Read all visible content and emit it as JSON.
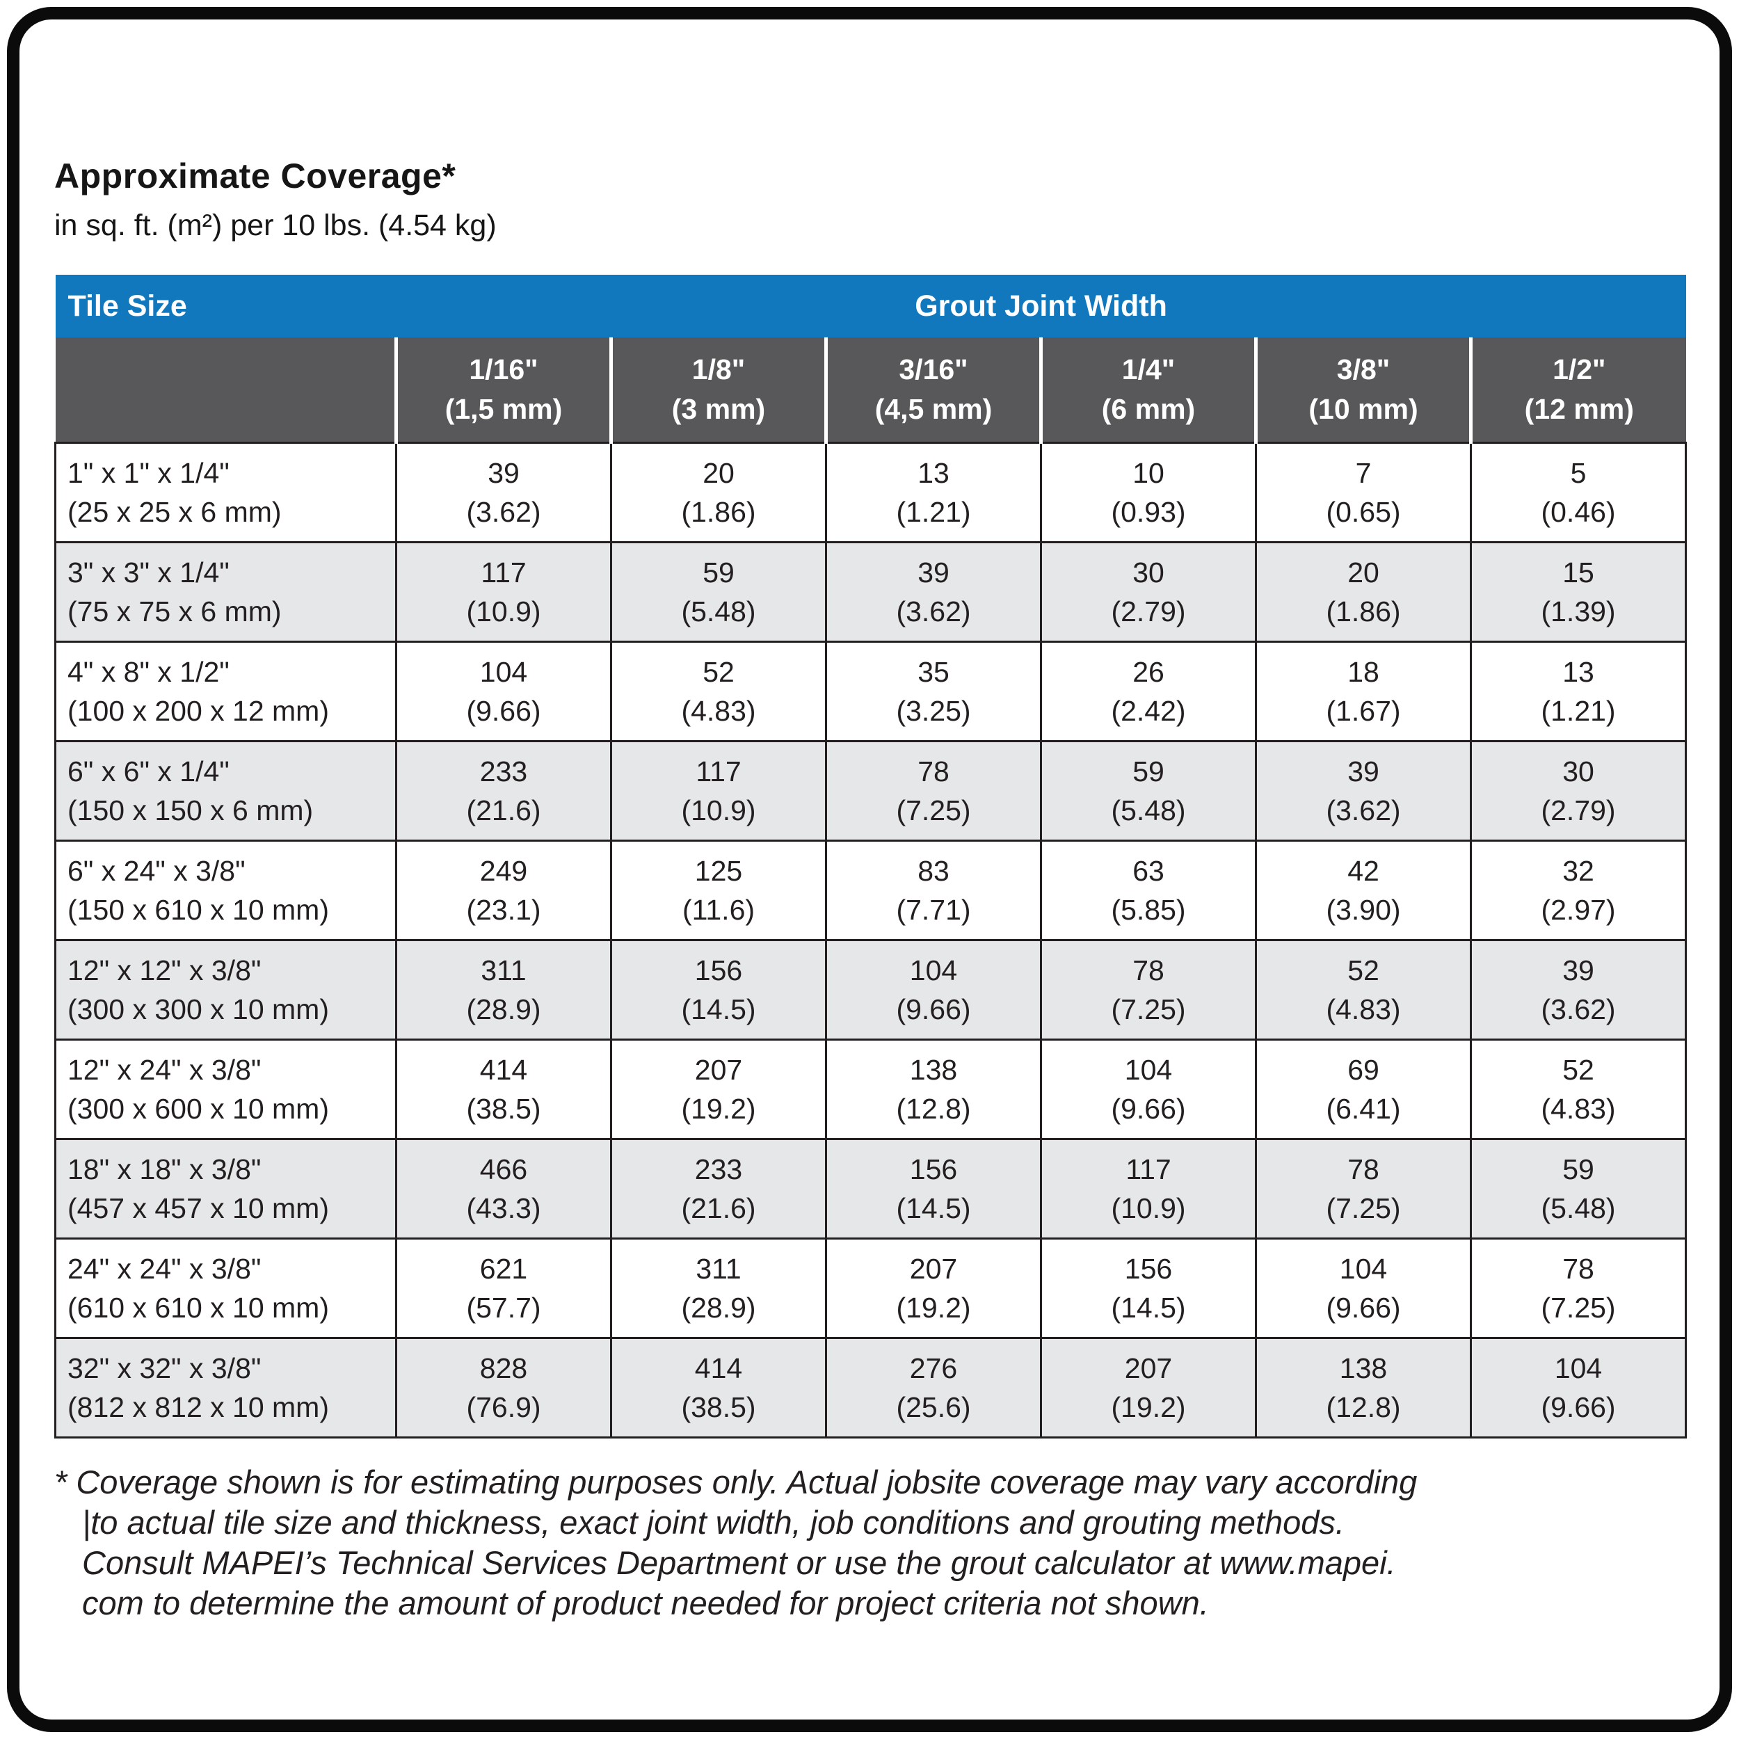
{
  "page": {
    "title": "Approximate Coverage*",
    "subtitle": "in sq. ft. (m²) per 10 lbs. (4.54 kg)"
  },
  "colors": {
    "header_blue": "#1278BE",
    "subheader_gray": "#58585A",
    "row_stripe_gray": "#E6E7E8",
    "grid_line": "#231F20",
    "frame_black": "#0B0B0B"
  },
  "table": {
    "tile_size_header": "Tile Size",
    "grout_header": "Grout Joint Width",
    "columns": [
      {
        "width_in": "1/16\"",
        "width_mm": "(1,5 mm)"
      },
      {
        "width_in": "1/8\"",
        "width_mm": "(3 mm)"
      },
      {
        "width_in": "3/16\"",
        "width_mm": "(4,5 mm)"
      },
      {
        "width_in": "1/4\"",
        "width_mm": "(6 mm)"
      },
      {
        "width_in": "3/8\"",
        "width_mm": "(10 mm)"
      },
      {
        "width_in": "1/2\"",
        "width_mm": "(12 mm)"
      }
    ],
    "rows": [
      {
        "size_in": "1\" x 1\" x 1/4\"",
        "size_mm": "(25 x 25 x 6 mm)",
        "cells": [
          [
            "39",
            "(3.62)"
          ],
          [
            "20",
            "(1.86)"
          ],
          [
            "13",
            "(1.21)"
          ],
          [
            "10",
            "(0.93)"
          ],
          [
            "7",
            "(0.65)"
          ],
          [
            "5",
            "(0.46)"
          ]
        ]
      },
      {
        "size_in": "3\" x 3\" x 1/4\"",
        "size_mm": "(75 x 75 x 6 mm)",
        "cells": [
          [
            "117",
            "(10.9)"
          ],
          [
            "59",
            "(5.48)"
          ],
          [
            "39",
            "(3.62)"
          ],
          [
            "30",
            "(2.79)"
          ],
          [
            "20",
            "(1.86)"
          ],
          [
            "15",
            "(1.39)"
          ]
        ]
      },
      {
        "size_in": "4\" x 8\" x 1/2\"",
        "size_mm": "(100 x 200 x 12 mm)",
        "cells": [
          [
            "104",
            "(9.66)"
          ],
          [
            "52",
            "(4.83)"
          ],
          [
            "35",
            "(3.25)"
          ],
          [
            "26",
            "(2.42)"
          ],
          [
            "18",
            "(1.67)"
          ],
          [
            "13",
            "(1.21)"
          ]
        ]
      },
      {
        "size_in": "6\" x 6\" x 1/4\"",
        "size_mm": "(150 x 150 x 6 mm)",
        "cells": [
          [
            "233",
            "(21.6)"
          ],
          [
            "117",
            "(10.9)"
          ],
          [
            "78",
            "(7.25)"
          ],
          [
            "59",
            "(5.48)"
          ],
          [
            "39",
            "(3.62)"
          ],
          [
            "30",
            "(2.79)"
          ]
        ]
      },
      {
        "size_in": "6\" x 24\" x 3/8\"",
        "size_mm": "(150 x 610 x 10 mm)",
        "cells": [
          [
            "249",
            "(23.1)"
          ],
          [
            "125",
            "(11.6)"
          ],
          [
            "83",
            "(7.71)"
          ],
          [
            "63",
            "(5.85)"
          ],
          [
            "42",
            "(3.90)"
          ],
          [
            "32",
            "(2.97)"
          ]
        ]
      },
      {
        "size_in": "12\" x 12\" x 3/8\"",
        "size_mm": "(300 x 300 x 10 mm)",
        "cells": [
          [
            "311",
            "(28.9)"
          ],
          [
            "156",
            "(14.5)"
          ],
          [
            "104",
            "(9.66)"
          ],
          [
            "78",
            "(7.25)"
          ],
          [
            "52",
            "(4.83)"
          ],
          [
            "39",
            "(3.62)"
          ]
        ]
      },
      {
        "size_in": "12\" x 24\" x 3/8\"",
        "size_mm": "(300 x 600 x 10 mm)",
        "cells": [
          [
            "414",
            "(38.5)"
          ],
          [
            "207",
            "(19.2)"
          ],
          [
            "138",
            "(12.8)"
          ],
          [
            "104",
            "(9.66)"
          ],
          [
            "69",
            "(6.41)"
          ],
          [
            "52",
            "(4.83)"
          ]
        ]
      },
      {
        "size_in": "18\" x 18\" x 3/8\"",
        "size_mm": "(457 x 457 x 10 mm)",
        "cells": [
          [
            "466",
            "(43.3)"
          ],
          [
            "233",
            "(21.6)"
          ],
          [
            "156",
            "(14.5)"
          ],
          [
            "117",
            "(10.9)"
          ],
          [
            "78",
            "(7.25)"
          ],
          [
            "59",
            "(5.48)"
          ]
        ]
      },
      {
        "size_in": "24\" x 24\" x 3/8\"",
        "size_mm": "(610 x 610 x 10 mm)",
        "cells": [
          [
            "621",
            "(57.7)"
          ],
          [
            "311",
            "(28.9)"
          ],
          [
            "207",
            "(19.2)"
          ],
          [
            "156",
            "(14.5)"
          ],
          [
            "104",
            "(9.66)"
          ],
          [
            "78",
            "(7.25)"
          ]
        ]
      },
      {
        "size_in": "32\" x 32\" x 3/8\"",
        "size_mm": "(812 x 812 x 10 mm)",
        "cells": [
          [
            "828",
            "(76.9)"
          ],
          [
            "414",
            "(38.5)"
          ],
          [
            "276",
            "(25.6)"
          ],
          [
            "207",
            "(19.2)"
          ],
          [
            "138",
            "(12.8)"
          ],
          [
            "104",
            "(9.66)"
          ]
        ]
      }
    ]
  },
  "footnote": {
    "lines": [
      "* Coverage shown is for estimating purposes only. Actual jobsite coverage may vary according",
      "|to actual tile size and thickness, exact joint width, job conditions and grouting methods.",
      "Consult MAPEI’s Technical Services Department or use the grout calculator at www.mapei.",
      "com to determine the amount of product needed for project criteria not shown."
    ]
  }
}
